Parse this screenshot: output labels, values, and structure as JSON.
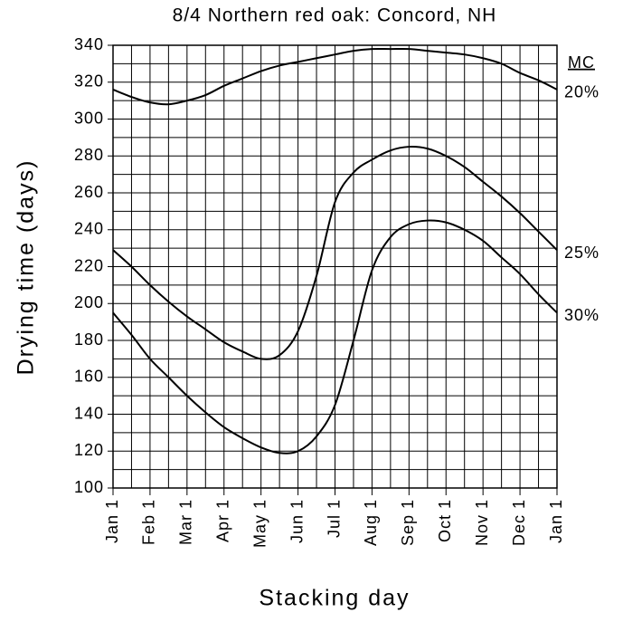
{
  "chart_data": {
    "type": "line",
    "title": "8/4 Northern red oak: Concord, NH",
    "xlabel": "Stacking day",
    "ylabel": "Drying time (days)",
    "legend_title": "MC",
    "xlim": [
      0,
      12
    ],
    "ylim": [
      100,
      340
    ],
    "xticks": [
      {
        "value": 0,
        "label": "Jan 1"
      },
      {
        "value": 1,
        "label": "Feb 1"
      },
      {
        "value": 2,
        "label": "Mar 1"
      },
      {
        "value": 3,
        "label": "Apr 1"
      },
      {
        "value": 4,
        "label": "May 1"
      },
      {
        "value": 5,
        "label": "Jun 1"
      },
      {
        "value": 6,
        "label": "Jul 1"
      },
      {
        "value": 7,
        "label": "Aug 1"
      },
      {
        "value": 8,
        "label": "Sep 1"
      },
      {
        "value": 9,
        "label": "Oct 1"
      },
      {
        "value": 10,
        "label": "Nov 1"
      },
      {
        "value": 11,
        "label": "Dec 1"
      },
      {
        "value": 12,
        "label": "Jan 1"
      }
    ],
    "yticks": [
      100,
      120,
      140,
      160,
      180,
      200,
      220,
      240,
      260,
      280,
      300,
      320,
      340
    ],
    "xgrid": [
      0,
      0.5,
      1,
      1.5,
      2,
      2.5,
      3,
      3.5,
      4,
      4.5,
      5,
      5.5,
      6,
      6.5,
      7,
      7.5,
      8,
      8.5,
      9,
      9.5,
      10,
      10.5,
      11,
      11.5,
      12
    ],
    "ygrid": [
      100,
      110,
      120,
      130,
      140,
      150,
      160,
      170,
      180,
      190,
      200,
      210,
      220,
      230,
      240,
      250,
      260,
      270,
      280,
      290,
      300,
      310,
      320,
      330,
      340
    ],
    "grid": true,
    "x": [
      0,
      0.5,
      1,
      1.5,
      2,
      2.5,
      3,
      3.5,
      4,
      4.5,
      5,
      5.5,
      6,
      6.5,
      7,
      7.5,
      8,
      8.5,
      9,
      9.5,
      10,
      10.5,
      11,
      11.5,
      12
    ],
    "series": [
      {
        "name": "20%",
        "color": "#000000",
        "values": [
          316,
          312,
          309,
          308,
          310,
          313,
          318,
          322,
          326,
          329,
          331,
          333,
          335,
          337,
          338,
          338,
          338,
          337,
          336,
          335,
          333,
          330,
          325,
          321,
          316
        ]
      },
      {
        "name": "25%",
        "color": "#000000",
        "values": [
          229,
          220,
          210,
          201,
          193,
          186,
          179,
          174,
          170,
          172,
          185,
          215,
          255,
          271,
          278,
          283,
          285,
          284,
          280,
          274,
          266,
          258,
          249,
          239,
          229
        ]
      },
      {
        "name": "30%",
        "color": "#000000",
        "values": [
          195,
          183,
          170,
          160,
          150,
          141,
          133,
          127,
          122,
          119,
          120,
          128,
          145,
          180,
          218,
          236,
          243,
          245,
          244,
          240,
          234,
          225,
          216,
          205,
          195
        ]
      }
    ]
  }
}
